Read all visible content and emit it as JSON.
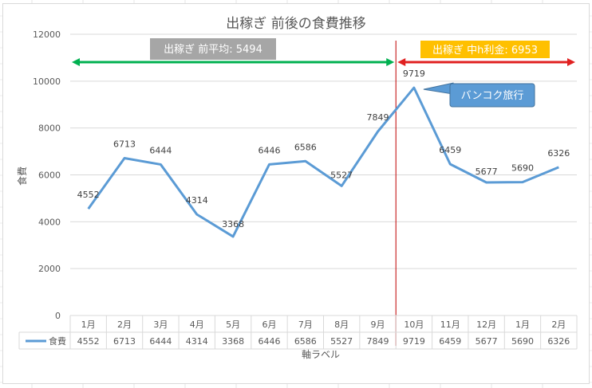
{
  "colors": {
    "line": "#5b9bd5",
    "grid": "#d9d9d9",
    "divider": "#c00000",
    "before_arrow": "#00b050",
    "after_arrow": "#e02020",
    "before_box": "#a6a6a6",
    "after_box": "#ffc000",
    "callout": "#5b9bd5"
  },
  "chart_data": {
    "type": "line",
    "title": "出稼ぎ 前後の食費推移",
    "xlabel": "軸ラベル",
    "ylabel": "食費",
    "ylim": [
      0,
      12000
    ],
    "yticks": [
      0,
      2000,
      4000,
      6000,
      8000,
      10000,
      12000
    ],
    "categories": [
      "1月",
      "2月",
      "3月",
      "4月",
      "5月",
      "6月",
      "7月",
      "8月",
      "9月",
      "10月",
      "11月",
      "12月",
      "1月",
      "2月"
    ],
    "series": [
      {
        "name": "食費",
        "values": [
          4552,
          6713,
          6444,
          4314,
          3368,
          6446,
          6586,
          5527,
          7849,
          9719,
          6459,
          5677,
          5690,
          6326
        ]
      }
    ],
    "grid": true,
    "legend": "data-table",
    "annotations": {
      "before_label": "出稼ぎ 前平均: 5494",
      "after_label": "出稼ぎ 中h利金: 6953",
      "callout_label": "バンコク旅行"
    }
  }
}
